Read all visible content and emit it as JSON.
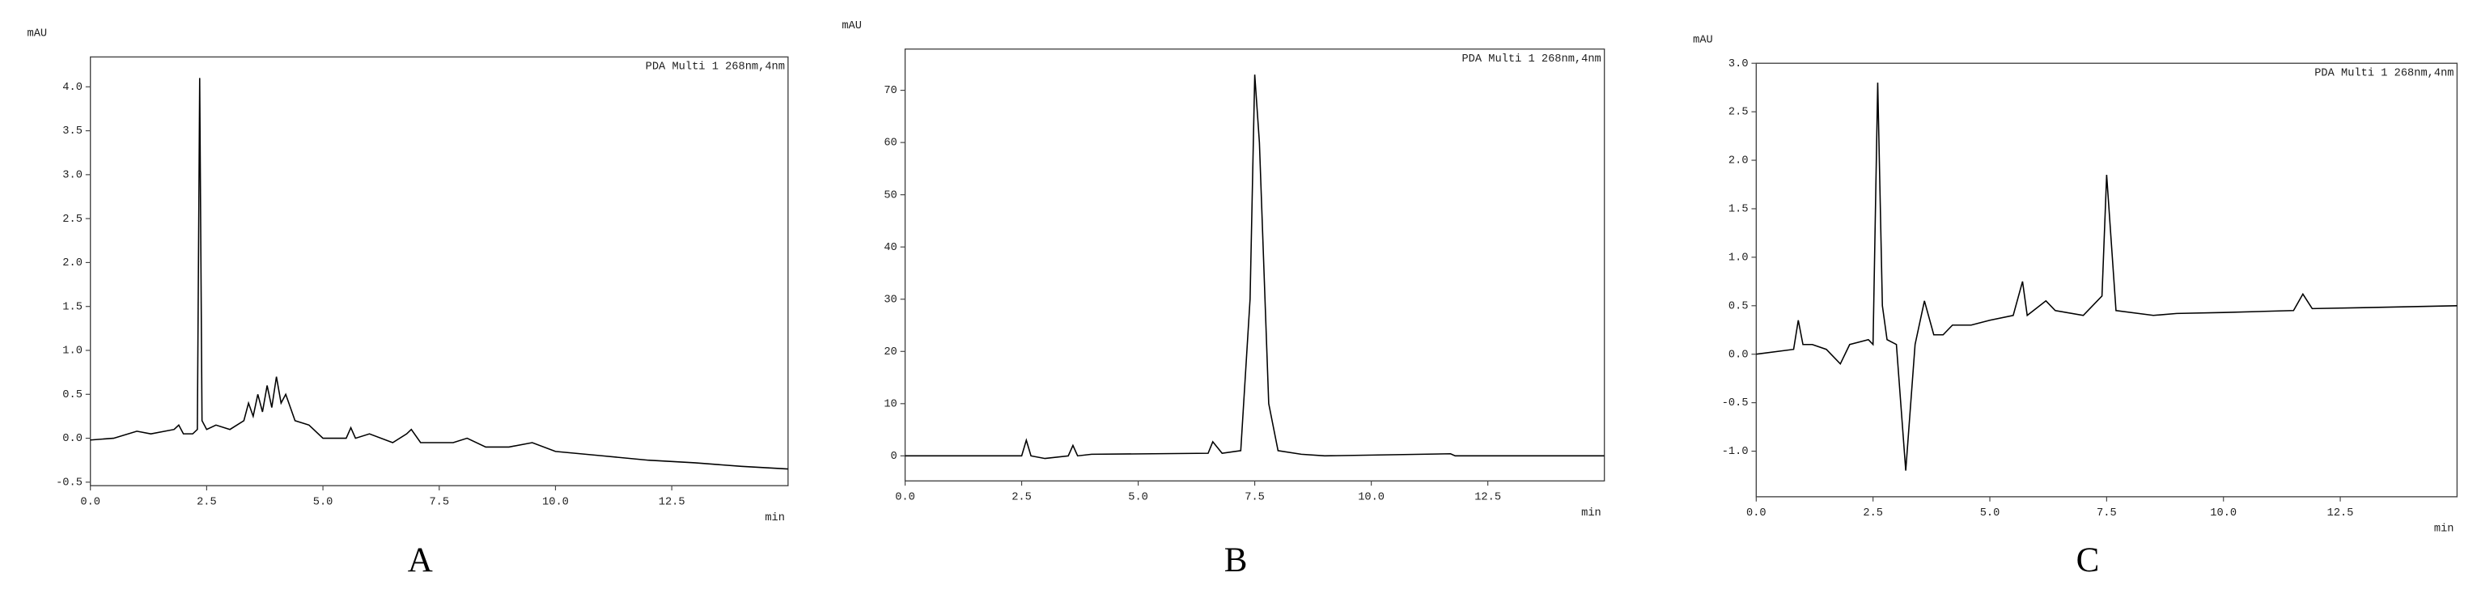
{
  "chart_data": [
    {
      "type": "line",
      "caption": "A",
      "annotation": "PDA Multi 1 268nm,4nm",
      "y_label": "mAU",
      "x_label": "min",
      "color": "#000000",
      "x": [
        0,
        0.5,
        1.0,
        1.3,
        1.8,
        1.9,
        2.0,
        2.2,
        2.3,
        2.35,
        2.4,
        2.5,
        2.7,
        3.0,
        3.3,
        3.4,
        3.5,
        3.6,
        3.7,
        3.8,
        3.9,
        4.0,
        4.1,
        4.2,
        4.4,
        4.7,
        4.8,
        5.0,
        5.5,
        5.6,
        5.7,
        6.0,
        6.5,
        6.8,
        6.9,
        7.1,
        7.8,
        8.1,
        8.5,
        9.0,
        9.5,
        10,
        11,
        12,
        13,
        14,
        15
      ],
      "y": [
        -0.02,
        0.0,
        0.08,
        0.05,
        0.1,
        0.15,
        0.05,
        0.05,
        0.1,
        4.1,
        0.2,
        0.1,
        0.15,
        0.1,
        0.2,
        0.4,
        0.25,
        0.5,
        0.3,
        0.6,
        0.35,
        0.7,
        0.4,
        0.5,
        0.2,
        0.15,
        0.1,
        0.0,
        0.0,
        0.12,
        0.0,
        0.05,
        -0.05,
        0.05,
        0.1,
        -0.05,
        -0.05,
        0.0,
        -0.1,
        -0.1,
        -0.05,
        -0.15,
        -0.2,
        -0.25,
        -0.28,
        -0.32,
        -0.35
      ],
      "xlim": [
        0,
        15
      ],
      "ylim": [
        -0.54,
        4.34
      ],
      "xticks": [
        {
          "value": 0,
          "label": "0.0"
        },
        2.5,
        {
          "value": 5,
          "label": "5.0"
        },
        7.5,
        {
          "value": 10,
          "label": "10.0"
        },
        12.5
      ],
      "yticks": [
        -0.5,
        {
          "value": 0,
          "label": "0.0"
        },
        0.5,
        {
          "value": 1,
          "label": "1.0"
        },
        1.5,
        {
          "value": 2,
          "label": "2.0"
        },
        2.5,
        {
          "value": 3,
          "label": "3.0"
        },
        3.5,
        {
          "value": 4,
          "label": "4.0"
        }
      ]
    },
    {
      "type": "line",
      "caption": "B",
      "annotation": "PDA  Multi  1 268nm,4nm",
      "y_label": "mAU",
      "x_label": "min",
      "color": "#000000",
      "x": [
        0,
        2.5,
        2.6,
        2.7,
        3.0,
        3.5,
        3.6,
        3.7,
        4.0,
        6.5,
        6.6,
        6.8,
        7.2,
        7.4,
        7.5,
        7.6,
        7.8,
        8.0,
        8.5,
        9,
        11.7,
        11.8,
        15
      ],
      "y": [
        0,
        0,
        3,
        0,
        -0.5,
        0,
        2,
        0,
        0.3,
        0.5,
        2.7,
        0.5,
        1,
        30,
        73,
        60,
        10,
        1,
        0.3,
        0,
        0.4,
        0,
        0
      ],
      "xlim": [
        0,
        15
      ],
      "ylim": [
        -4.8,
        77.9
      ],
      "xticks": [
        {
          "value": 0,
          "label": "0.0"
        },
        2.5,
        {
          "value": 5,
          "label": "5.0"
        },
        7.5,
        {
          "value": 10,
          "label": "10.0"
        },
        12.5
      ],
      "yticks": [
        0,
        10,
        20,
        30,
        40,
        50,
        60,
        70
      ]
    },
    {
      "type": "line",
      "caption": "C",
      "annotation": "PDA Multi 1 268nm,4nm",
      "y_label": "mAU",
      "x_label": "min",
      "color": "#000000",
      "x": [
        0,
        0.8,
        0.9,
        1.0,
        1.2,
        1.5,
        1.8,
        2.0,
        2.4,
        2.5,
        2.6,
        2.7,
        2.8,
        3.0,
        3.2,
        3.4,
        3.6,
        3.8,
        4.0,
        4.2,
        4.6,
        5.0,
        5.5,
        5.7,
        5.8,
        6.2,
        6.4,
        7.0,
        7.4,
        7.5,
        7.7,
        8.5,
        9,
        10,
        11.5,
        11.7,
        11.9,
        13,
        15
      ],
      "y": [
        0,
        0.05,
        0.35,
        0.1,
        0.1,
        0.05,
        -0.1,
        0.1,
        0.15,
        0.1,
        2.8,
        0.5,
        0.15,
        0.1,
        -1.2,
        0.1,
        0.55,
        0.2,
        0.2,
        0.3,
        0.3,
        0.35,
        0.4,
        0.75,
        0.4,
        0.55,
        0.45,
        0.4,
        0.6,
        1.85,
        0.45,
        0.4,
        0.42,
        0.43,
        0.45,
        0.62,
        0.47,
        0.48,
        0.5
      ],
      "xlim": [
        0,
        15
      ],
      "ylim": [
        -1.47,
        3.0
      ],
      "xticks": [
        {
          "value": 0,
          "label": "0.0"
        },
        2.5,
        {
          "value": 5,
          "label": "5.0"
        },
        7.5,
        {
          "value": 10,
          "label": "10.0"
        },
        12.5
      ],
      "yticks": [
        {
          "value": -1,
          "label": "-1.0"
        },
        -0.5,
        {
          "value": 0,
          "label": "0.0"
        },
        0.5,
        {
          "value": 1,
          "label": "1.0"
        },
        1.5,
        {
          "value": 2,
          "label": "2.0"
        },
        2.5,
        {
          "value": 3,
          "label": "3.0"
        }
      ]
    }
  ]
}
